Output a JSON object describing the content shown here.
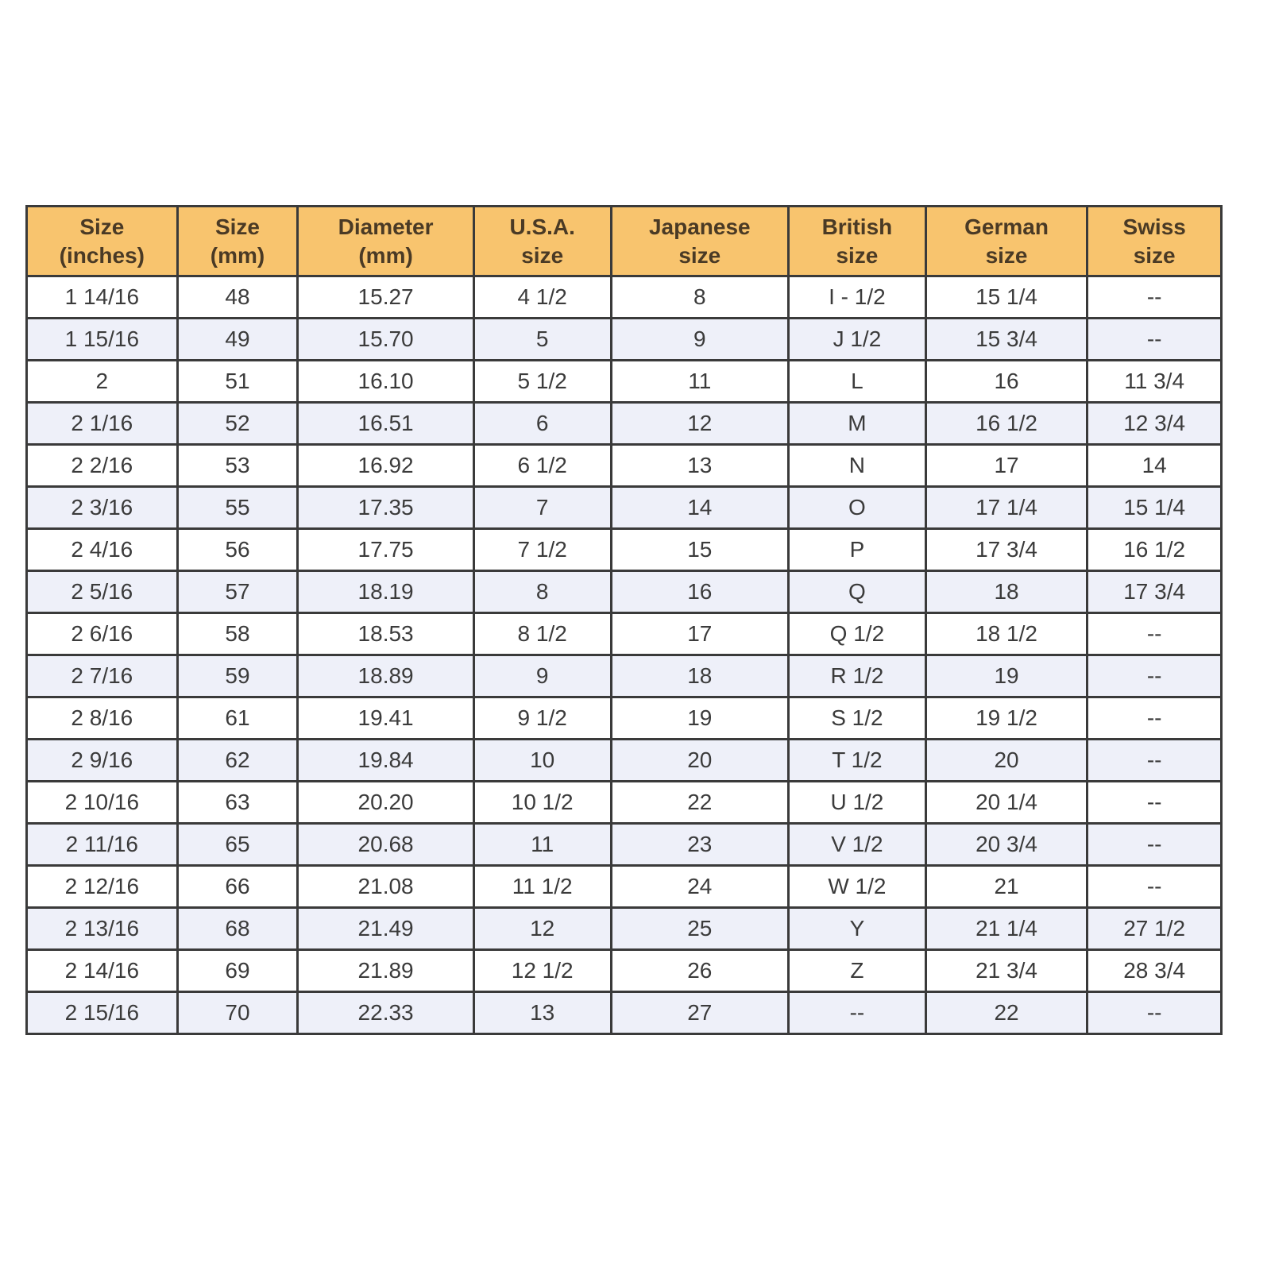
{
  "table": {
    "headers": [
      [
        "Size",
        "(inches)"
      ],
      [
        "Size",
        "(mm)"
      ],
      [
        "Diameter",
        "(mm)"
      ],
      [
        "U.S.A.",
        "size"
      ],
      [
        "Japanese",
        "size"
      ],
      [
        "British",
        "size"
      ],
      [
        "German",
        "size"
      ],
      [
        "Swiss",
        "size"
      ]
    ],
    "rows": [
      [
        "1 14/16",
        "48",
        "15.27",
        "4 1/2",
        "8",
        "I - 1/2",
        "15 1/4",
        "--"
      ],
      [
        "1 15/16",
        "49",
        "15.70",
        "5",
        "9",
        "J 1/2",
        "15 3/4",
        "--"
      ],
      [
        "2",
        "51",
        "16.10",
        "5 1/2",
        "11",
        "L",
        "16",
        "11 3/4"
      ],
      [
        "2 1/16",
        "52",
        "16.51",
        "6",
        "12",
        "M",
        "16 1/2",
        "12 3/4"
      ],
      [
        "2 2/16",
        "53",
        "16.92",
        "6 1/2",
        "13",
        "N",
        "17",
        "14"
      ],
      [
        "2 3/16",
        "55",
        "17.35",
        "7",
        "14",
        "O",
        "17 1/4",
        "15 1/4"
      ],
      [
        "2 4/16",
        "56",
        "17.75",
        "7 1/2",
        "15",
        "P",
        "17 3/4",
        "16 1/2"
      ],
      [
        "2 5/16",
        "57",
        "18.19",
        "8",
        "16",
        "Q",
        "18",
        "17 3/4"
      ],
      [
        "2 6/16",
        "58",
        "18.53",
        "8 1/2",
        "17",
        "Q 1/2",
        "18 1/2",
        "--"
      ],
      [
        "2 7/16",
        "59",
        "18.89",
        "9",
        "18",
        "R 1/2",
        "19",
        "--"
      ],
      [
        "2 8/16",
        "61",
        "19.41",
        "9 1/2",
        "19",
        "S 1/2",
        "19 1/2",
        "--"
      ],
      [
        "2 9/16",
        "62",
        "19.84",
        "10",
        "20",
        "T 1/2",
        "20",
        "--"
      ],
      [
        "2 10/16",
        "63",
        "20.20",
        "10 1/2",
        "22",
        "U 1/2",
        "20 1/4",
        "--"
      ],
      [
        "2 11/16",
        "65",
        "20.68",
        "11",
        "23",
        "V 1/2",
        "20 3/4",
        "--"
      ],
      [
        "2 12/16",
        "66",
        "21.08",
        "11 1/2",
        "24",
        "W 1/2",
        "21",
        "--"
      ],
      [
        "2 13/16",
        "68",
        "21.49",
        "12",
        "25",
        "Y",
        "21 1/4",
        "27 1/2"
      ],
      [
        "2 14/16",
        "69",
        "21.89",
        "12 1/2",
        "26",
        "Z",
        "21 3/4",
        "28 3/4"
      ],
      [
        "2 15/16",
        "70",
        "22.33",
        "13",
        "27",
        "--",
        "22",
        "--"
      ]
    ]
  },
  "colors": {
    "header_bg": "#f8c46e",
    "alt_row_bg": "#eef0f9",
    "border": "#3a3a3a"
  }
}
